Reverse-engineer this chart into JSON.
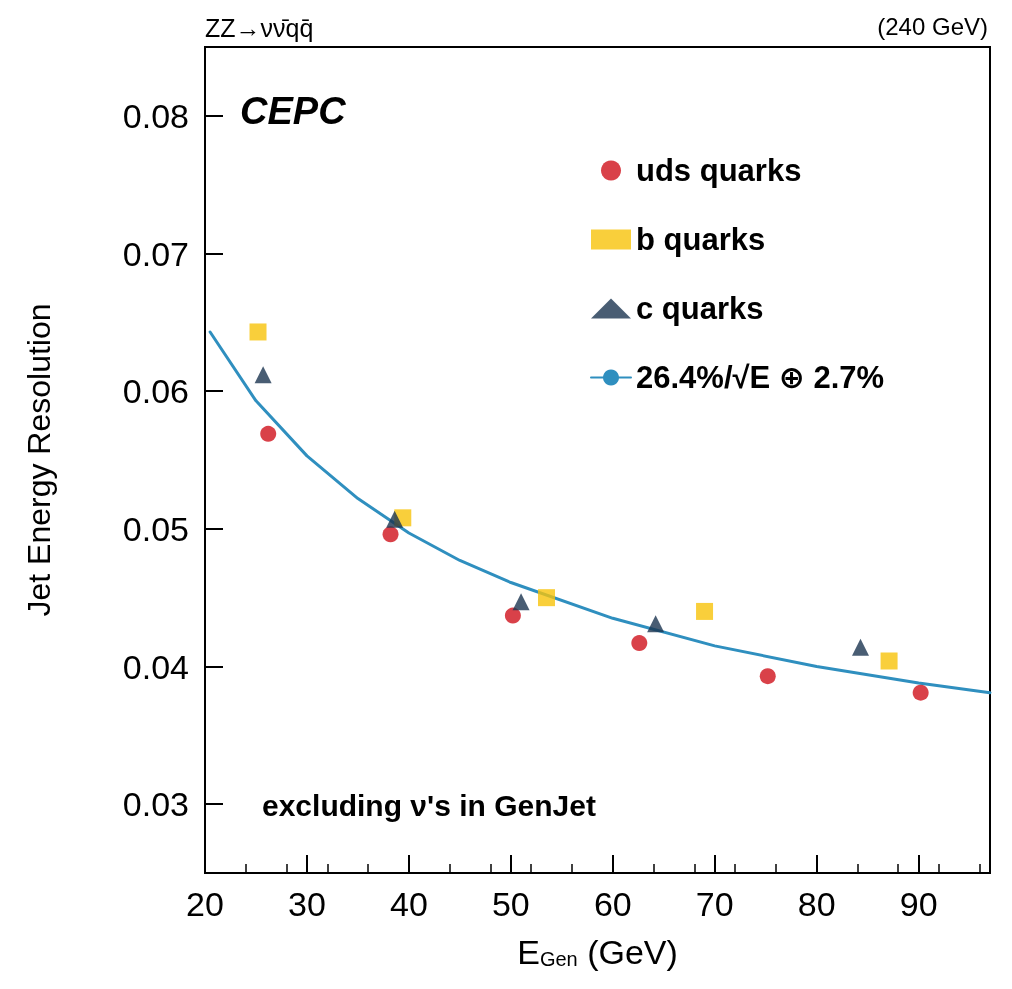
{
  "chart_data": {
    "type": "scatter",
    "title": "ZZ→νν̄qq̄",
    "xlabel": "E$_{Gen}$ (GeV)",
    "ylabel": "Jet Energy Resolution",
    "annotations": [
      "(240 GeV)",
      "CEPC",
      "excluding ν's in GenJet"
    ],
    "xlim": [
      20,
      97
    ],
    "xticks": [
      20,
      30,
      40,
      50,
      60,
      70,
      80,
      90
    ],
    "ylim": [
      0.025,
      0.085
    ],
    "yticks": [
      0.03,
      0.04,
      0.05,
      0.06,
      0.07,
      0.08
    ],
    "grid": false,
    "legend": "top right",
    "series": [
      {
        "name": "uds quarks",
        "color": "#d0111b",
        "marker": "circle",
        "x": [
          26.2,
          38.2,
          50.2,
          62.6,
          75.2,
          90.2
        ],
        "values": [
          0.0569,
          0.0496,
          0.0437,
          0.0417,
          0.0393,
          0.0381
        ]
      },
      {
        "name": "b quarks",
        "color": "#f8c30a",
        "marker": "square",
        "x": [
          25.2,
          39.4,
          53.5,
          69.0,
          87.1
        ],
        "values": [
          0.0643,
          0.0508,
          0.045,
          0.044,
          0.0404
        ]
      },
      {
        "name": "c quarks",
        "color": "#1b3450",
        "marker": "triangle",
        "x": [
          25.7,
          38.6,
          51.0,
          64.2,
          84.3
        ],
        "values": [
          0.0612,
          0.0507,
          0.0447,
          0.0431,
          0.0414
        ]
      },
      {
        "name": "26.4%/√E ⊕ 2.7%",
        "type": "line",
        "color": "#2f8fbf",
        "marker": "none",
        "line_style": "solid",
        "x": [
          20.5,
          25,
          30,
          35,
          40,
          45,
          50,
          60,
          70,
          80,
          90,
          97
        ],
        "values": [
          0.0643,
          0.0593,
          0.0553,
          0.0522,
          0.0497,
          0.0477,
          0.0461,
          0.0435,
          0.0415,
          0.04,
          0.0388,
          0.0381
        ]
      }
    ]
  }
}
